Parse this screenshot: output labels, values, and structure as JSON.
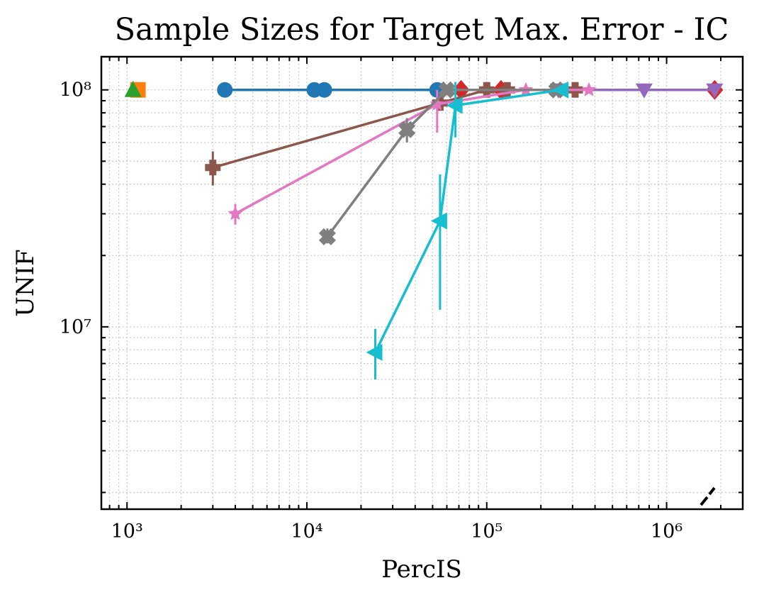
{
  "chart_data": {
    "type": "scatter",
    "title": "Sample Sizes for Target Max. Error - IC",
    "xlabel": "PercIS",
    "ylabel": "UNIF",
    "xscale": "log",
    "yscale": "log",
    "xlim": [
      720,
      2650000
    ],
    "ylim": [
      1700000,
      138000000
    ],
    "grid": true,
    "legend": "none",
    "x_ticks": [
      {
        "value": 1000,
        "label": "10³"
      },
      {
        "value": 10000,
        "label": "10⁴"
      },
      {
        "value": 100000,
        "label": "10⁵"
      },
      {
        "value": 1000000,
        "label": "10⁶"
      }
    ],
    "y_ticks": [
      {
        "value": 10000000,
        "label": "10⁷"
      },
      {
        "value": 100000000,
        "label": "10⁸"
      }
    ],
    "series": [
      {
        "color": "#1f77b4",
        "marker": "circle",
        "line": true,
        "points": [
          {
            "x": 3500,
            "y": 100000000
          },
          {
            "x": 11000,
            "y": 100000000
          },
          {
            "x": 12500,
            "y": 100000000
          },
          {
            "x": 53000,
            "y": 100000000
          }
        ]
      },
      {
        "color": "#ff7f0e",
        "marker": "square",
        "line": false,
        "points": [
          {
            "x": 1150,
            "y": 100000000
          }
        ]
      },
      {
        "color": "#2ca02c",
        "marker": "triangle-up",
        "line": false,
        "points": [
          {
            "x": 1080,
            "y": 100000000
          }
        ]
      },
      {
        "color": "#d62728",
        "marker": "diamond",
        "line": true,
        "points": [
          {
            "x": 72000,
            "y": 100000000
          },
          {
            "x": 120000,
            "y": 100000000
          },
          {
            "x": 1850000,
            "y": 100000000
          }
        ]
      },
      {
        "color": "#9467bd",
        "marker": "triangle-down",
        "line": true,
        "points": [
          {
            "x": 250000,
            "y": 100000000
          },
          {
            "x": 750000,
            "y": 100000000
          },
          {
            "x": 1850000,
            "y": 100000000
          }
        ]
      },
      {
        "color": "#8c564b",
        "marker": "plus",
        "line": true,
        "points": [
          {
            "x": 3000,
            "y": 47000000,
            "yerr": [
              39500000,
              55000000
            ]
          },
          {
            "x": 55000,
            "y": 88000000
          },
          {
            "x": 100000,
            "y": 100000000
          },
          {
            "x": 130000,
            "y": 100000000
          },
          {
            "x": 310000,
            "y": 100000000
          }
        ]
      },
      {
        "color": "#e377c2",
        "marker": "star",
        "line": true,
        "points": [
          {
            "x": 4000,
            "y": 30000000,
            "yerr": [
              27000000,
              33000000
            ]
          },
          {
            "x": 53000,
            "y": 87000000,
            "yerr": [
              66000000,
              100000000
            ]
          },
          {
            "x": 165000,
            "y": 100000000
          },
          {
            "x": 370000,
            "y": 100000000
          }
        ]
      },
      {
        "color": "#7f7f7f",
        "marker": "x-cross",
        "line": true,
        "points": [
          {
            "x": 13000,
            "y": 24000000,
            "yerr": [
              22500000,
              26000000
            ]
          },
          {
            "x": 36000,
            "y": 68000000,
            "yerr": [
              60000000,
              76000000
            ]
          },
          {
            "x": 60000,
            "y": 100000000
          },
          {
            "x": 245000,
            "y": 100000000
          }
        ]
      },
      {
        "color": "#17becf",
        "marker": "triangle-left",
        "line": true,
        "points": [
          {
            "x": 24000,
            "y": 7800000,
            "yerr": [
              6000000,
              9800000
            ]
          },
          {
            "x": 55000,
            "y": 28000000,
            "yerr": [
              11800000,
              44000000
            ]
          },
          {
            "x": 67000,
            "y": 86000000,
            "yerr": [
              63000000,
              108000000
            ]
          },
          {
            "x": 260000,
            "y": 100000000
          }
        ]
      }
    ]
  }
}
